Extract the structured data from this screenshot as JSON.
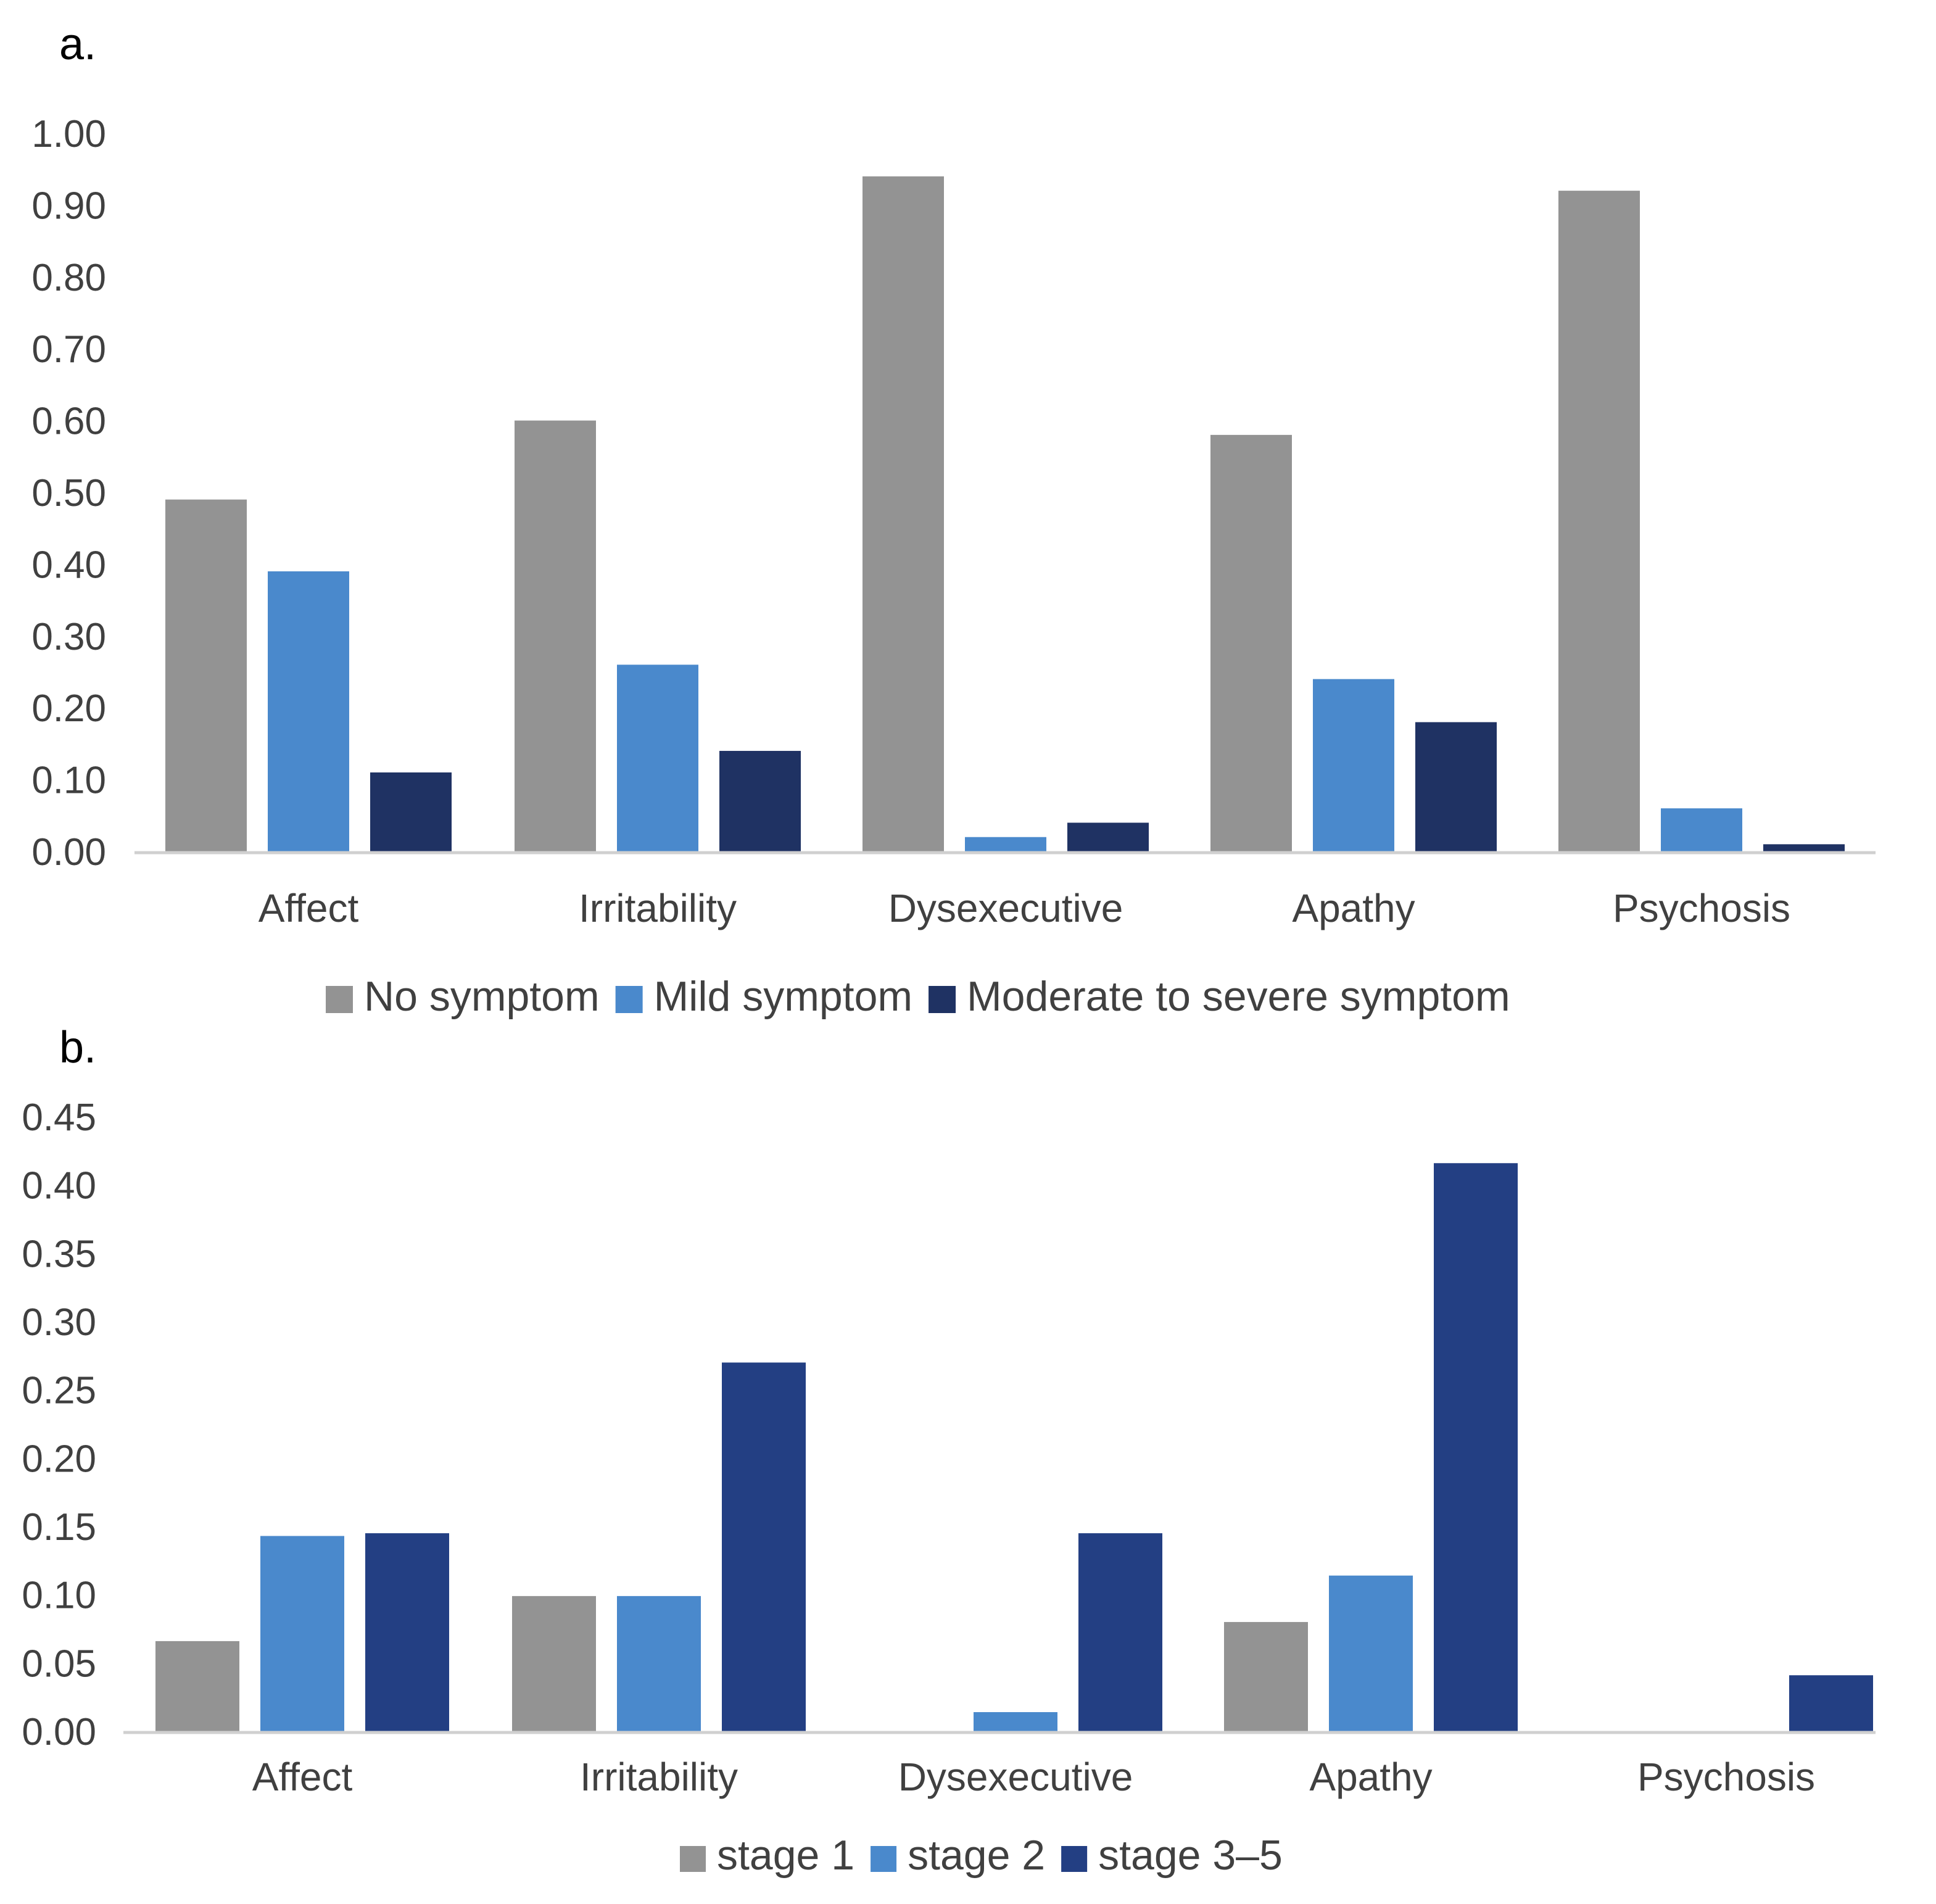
{
  "chart_data": [
    {
      "panel": "a.",
      "type": "bar",
      "categories": [
        "Affect",
        "Irritability",
        "Dysexecutive",
        "Apathy",
        "Psychosis"
      ],
      "series": [
        {
          "name": "No symptom",
          "color": "#939393",
          "values": [
            0.49,
            0.6,
            0.94,
            0.58,
            0.92
          ]
        },
        {
          "name": "Mild symptom",
          "color": "#4A89CC",
          "values": [
            0.39,
            0.26,
            0.02,
            0.24,
            0.06
          ]
        },
        {
          "name": "Moderate to severe symptom",
          "color": "#1F3263",
          "values": [
            0.11,
            0.14,
            0.04,
            0.18,
            0.01
          ]
        }
      ],
      "ylim": [
        0,
        1.0
      ],
      "yticks": [
        "0.00",
        "0.10",
        "0.20",
        "0.30",
        "0.40",
        "0.50",
        "0.60",
        "0.70",
        "0.80",
        "0.90",
        "1.00"
      ],
      "legend_position": "bottom-center",
      "grid": false
    },
    {
      "panel": "b.",
      "type": "bar",
      "categories": [
        "Affect",
        "Irritability",
        "Dysexecutive",
        "Apathy",
        "Psychosis"
      ],
      "series": [
        {
          "name": "stage 1",
          "color": "#939393",
          "values": [
            0.066,
            0.099,
            0.0,
            0.08,
            0.0
          ]
        },
        {
          "name": "stage 2",
          "color": "#4A89CC",
          "values": [
            0.143,
            0.099,
            0.014,
            0.114,
            0.0
          ]
        },
        {
          "name": "stage 3–5",
          "color": "#233F83",
          "values": [
            0.145,
            0.27,
            0.145,
            0.416,
            0.041
          ]
        }
      ],
      "ylim": [
        0,
        0.45
      ],
      "yticks": [
        "0.00",
        "0.05",
        "0.10",
        "0.15",
        "0.20",
        "0.25",
        "0.30",
        "0.35",
        "0.40",
        "0.45"
      ],
      "legend_position": "bottom-center",
      "grid": false
    }
  ]
}
